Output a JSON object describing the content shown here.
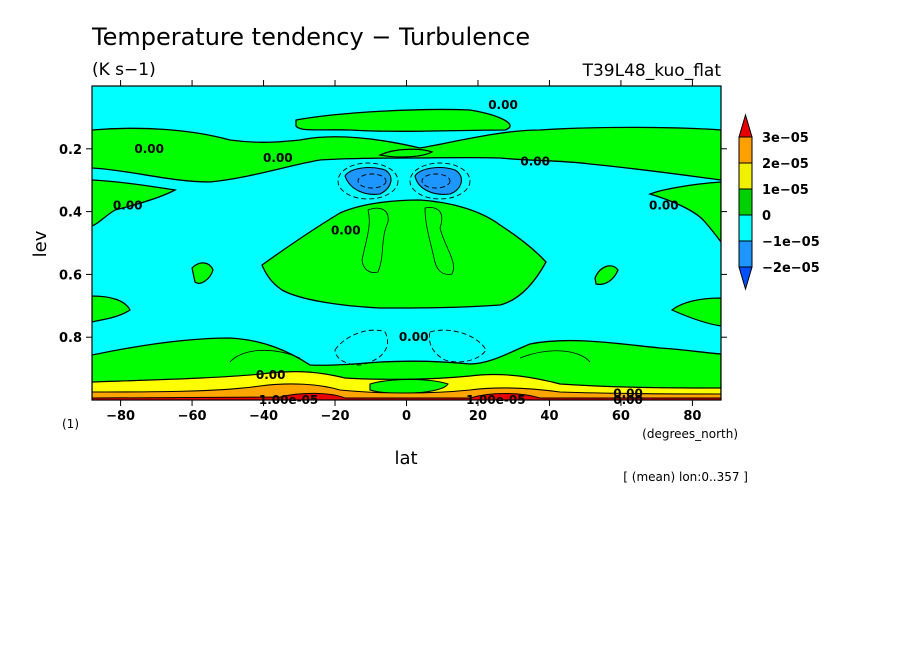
{
  "chart_data": {
    "type": "heatmap",
    "title": "Temperature tendency − Turbulence",
    "units": "(K s−1)",
    "run_label": "T39L48_kuo_flat",
    "xlabel": "lat",
    "ylabel": "lev",
    "x_units": "(degrees_north)",
    "y_units": "(1)",
    "xlim": [
      -88,
      88
    ],
    "ylim": [
      1.0,
      0.0
    ],
    "x_ticks": [
      -80,
      -60,
      -40,
      -20,
      0,
      20,
      40,
      60,
      80
    ],
    "x_tick_labels": [
      "−80",
      "−60",
      "−40",
      "−20",
      "0",
      "20",
      "40",
      "60",
      "80"
    ],
    "y_ticks": [
      0.2,
      0.4,
      0.6,
      0.8
    ],
    "y_tick_labels": [
      "0.2",
      "0.4",
      "0.6",
      "0.8"
    ],
    "footnote": "[ (mean) lon:0..357 ]",
    "legend": {
      "position": "right",
      "levels": [
        "3e−05",
        "2e−05",
        "1e−05",
        "0",
        "−1e−05",
        "−2e−05"
      ],
      "colors": [
        "#e80000",
        "#ffa000",
        "#f0f000",
        "#00d000",
        "#00ffff",
        "#1e96ff",
        "#0050ff"
      ]
    },
    "contour_labels": [
      {
        "text": "0.00",
        "lat": -72,
        "lev": 0.2
      },
      {
        "text": "0.00",
        "lat": -36,
        "lev": 0.23
      },
      {
        "text": "0.00",
        "lat": 27,
        "lev": 0.06
      },
      {
        "text": "0.00",
        "lat": 36,
        "lev": 0.24
      },
      {
        "text": "0.00",
        "lat": -78,
        "lev": 0.38
      },
      {
        "text": "0.00",
        "lat": -17,
        "lev": 0.46
      },
      {
        "text": "0.00",
        "lat": 72,
        "lev": 0.38
      },
      {
        "text": "0.00",
        "lat": 2,
        "lev": 0.8
      },
      {
        "text": "0.00",
        "lat": -38,
        "lev": 0.92
      },
      {
        "text": "0.00",
        "lat": 62,
        "lev": 0.98
      },
      {
        "text": "0.00",
        "lat": 62,
        "lev": 1.0
      },
      {
        "text": "1.00e-05",
        "lat": -33,
        "lev": 1.0
      },
      {
        "text": "1.00e-05",
        "lat": 25,
        "lev": 1.0
      }
    ]
  }
}
